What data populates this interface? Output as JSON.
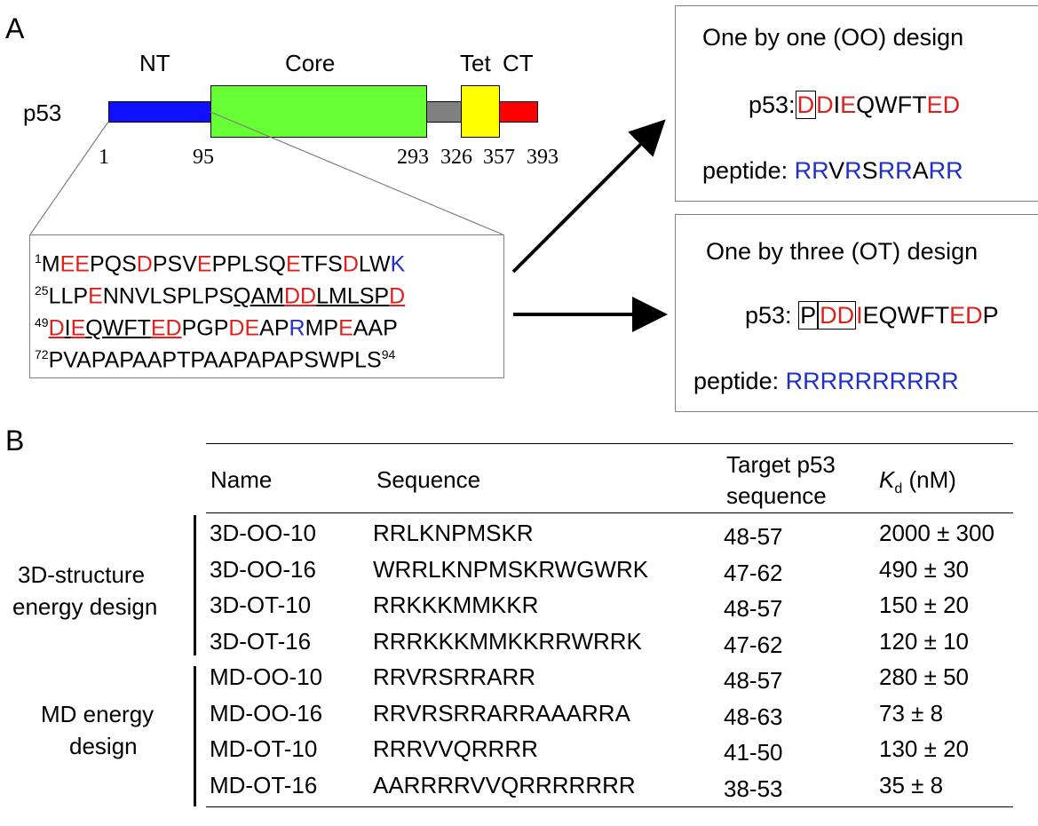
{
  "panelA": {
    "letter": "A",
    "protein_label": "p53",
    "domains": [
      {
        "label": "NT",
        "color": "#1010ff"
      },
      {
        "label": "Core",
        "color": "#66ff33"
      },
      {
        "label": "",
        "color": "#808080"
      },
      {
        "label": "Tet",
        "color": "#ffff00"
      },
      {
        "label": "CT",
        "color": "#ff0000"
      }
    ],
    "positions": [
      "1",
      "95",
      "293",
      "326",
      "357",
      "393"
    ],
    "seq_lines": [
      {
        "num": "1",
        "tokens": [
          [
            "M",
            ""
          ],
          [
            "EE",
            "r"
          ],
          [
            "PQS",
            ""
          ],
          [
            "D",
            "r"
          ],
          [
            "PSV",
            ""
          ],
          [
            "E",
            "r"
          ],
          [
            "PPLSQ",
            ""
          ],
          [
            "E",
            "r"
          ],
          [
            "TFS",
            ""
          ],
          [
            "D",
            "r"
          ],
          [
            "LW",
            ""
          ],
          [
            "K",
            "b"
          ]
        ]
      },
      {
        "num": "25",
        "tokens": [
          [
            "LLP",
            ""
          ],
          [
            "E",
            "r"
          ],
          [
            "NNVLSPLPS",
            ""
          ],
          [
            "QAM",
            "u"
          ],
          [
            "DD",
            "ru"
          ],
          [
            "LMLSP",
            "u"
          ],
          [
            "D",
            "ru"
          ]
        ]
      },
      {
        "num": "49",
        "tokens": [
          [
            "D",
            "ru"
          ],
          [
            "I",
            "u"
          ],
          [
            "E",
            "ru"
          ],
          [
            "QWFT",
            "u"
          ],
          [
            "ED",
            "ru"
          ],
          [
            "PGP",
            ""
          ],
          [
            "DE",
            "r"
          ],
          [
            "AP",
            ""
          ],
          [
            "R",
            "b"
          ],
          [
            "MP",
            ""
          ],
          [
            "E",
            "r"
          ],
          [
            "AAP",
            ""
          ]
        ]
      },
      {
        "num": "72",
        "tokens": [
          [
            "PVAPAPAAPTPAAPAPAPSWPLS",
            ""
          ]
        ],
        "end": "94"
      }
    ],
    "oo": {
      "title": "One by one (OO) design",
      "p53_label": "p53:",
      "p53_tokens": [
        [
          "D",
          "rbox"
        ],
        [
          "D",
          "r"
        ],
        [
          "I",
          ""
        ],
        [
          "E",
          "r"
        ],
        [
          "QWFT",
          ""
        ],
        [
          "ED",
          "r"
        ]
      ],
      "peptide_label": "peptide:",
      "peptide_tokens": [
        [
          "RR",
          "b"
        ],
        [
          "V",
          ""
        ],
        [
          "R",
          "b"
        ],
        [
          "S",
          ""
        ],
        [
          "RR",
          "b"
        ],
        [
          "A",
          ""
        ],
        [
          "RR",
          "b"
        ]
      ]
    },
    "ot": {
      "title": "One by three (OT) design",
      "p53_label": "p53:",
      "p53_tokens": [
        [
          "P",
          "box"
        ],
        [
          "DD",
          "rbox"
        ],
        [
          "I",
          "r"
        ],
        [
          "EQWFT",
          ""
        ],
        [
          "ED",
          "r"
        ],
        [
          "P",
          ""
        ]
      ],
      "peptide_label": "peptide:",
      "peptide_tokens": [
        [
          "RRRRRRRRRR",
          "b"
        ]
      ]
    }
  },
  "panelB": {
    "letter": "B",
    "headers": {
      "name": "Name",
      "sequence": "Sequence",
      "target_line1": "Target p53",
      "target_line2": "sequence",
      "kd_symbol": "K",
      "kd_sub": "d",
      "kd_unit": " (nM)"
    },
    "groups": [
      {
        "label_line1": "3D-structure",
        "label_line2": "energy design"
      },
      {
        "label_line1": "MD energy",
        "label_line2": "design"
      }
    ],
    "rows": [
      {
        "name": "3D-OO-10",
        "sequence": "RRLKNPMSKR",
        "target": "48-57",
        "kd": "2000 ± 300"
      },
      {
        "name": "3D-OO-16",
        "sequence": "WRRLKNPMSKRWGWRK",
        "target": "47-62",
        "kd": "490 ± 30"
      },
      {
        "name": "3D-OT-10",
        "sequence": "RRKKKMMKKR",
        "target": "48-57",
        "kd": "150 ± 20"
      },
      {
        "name": "3D-OT-16",
        "sequence": "RRRKKKMMKKRRWRRK",
        "target": "47-62",
        "kd": "120 ± 10"
      },
      {
        "name": "MD-OO-10",
        "sequence": "RRVRSRRARR",
        "target": "48-57",
        "kd": "280 ± 50"
      },
      {
        "name": "MD-OO-16",
        "sequence": "RRVRSRRARRAAARRA",
        "target": "48-63",
        "kd": "73 ± 8"
      },
      {
        "name": "MD-OT-10",
        "sequence": "RRRVVQRRRR",
        "target": "41-50",
        "kd": "130 ± 20"
      },
      {
        "name": "MD-OT-16",
        "sequence": "AARRRRVVQRRRRRRR",
        "target": "38-53",
        "kd": "35 ± 8"
      }
    ]
  }
}
